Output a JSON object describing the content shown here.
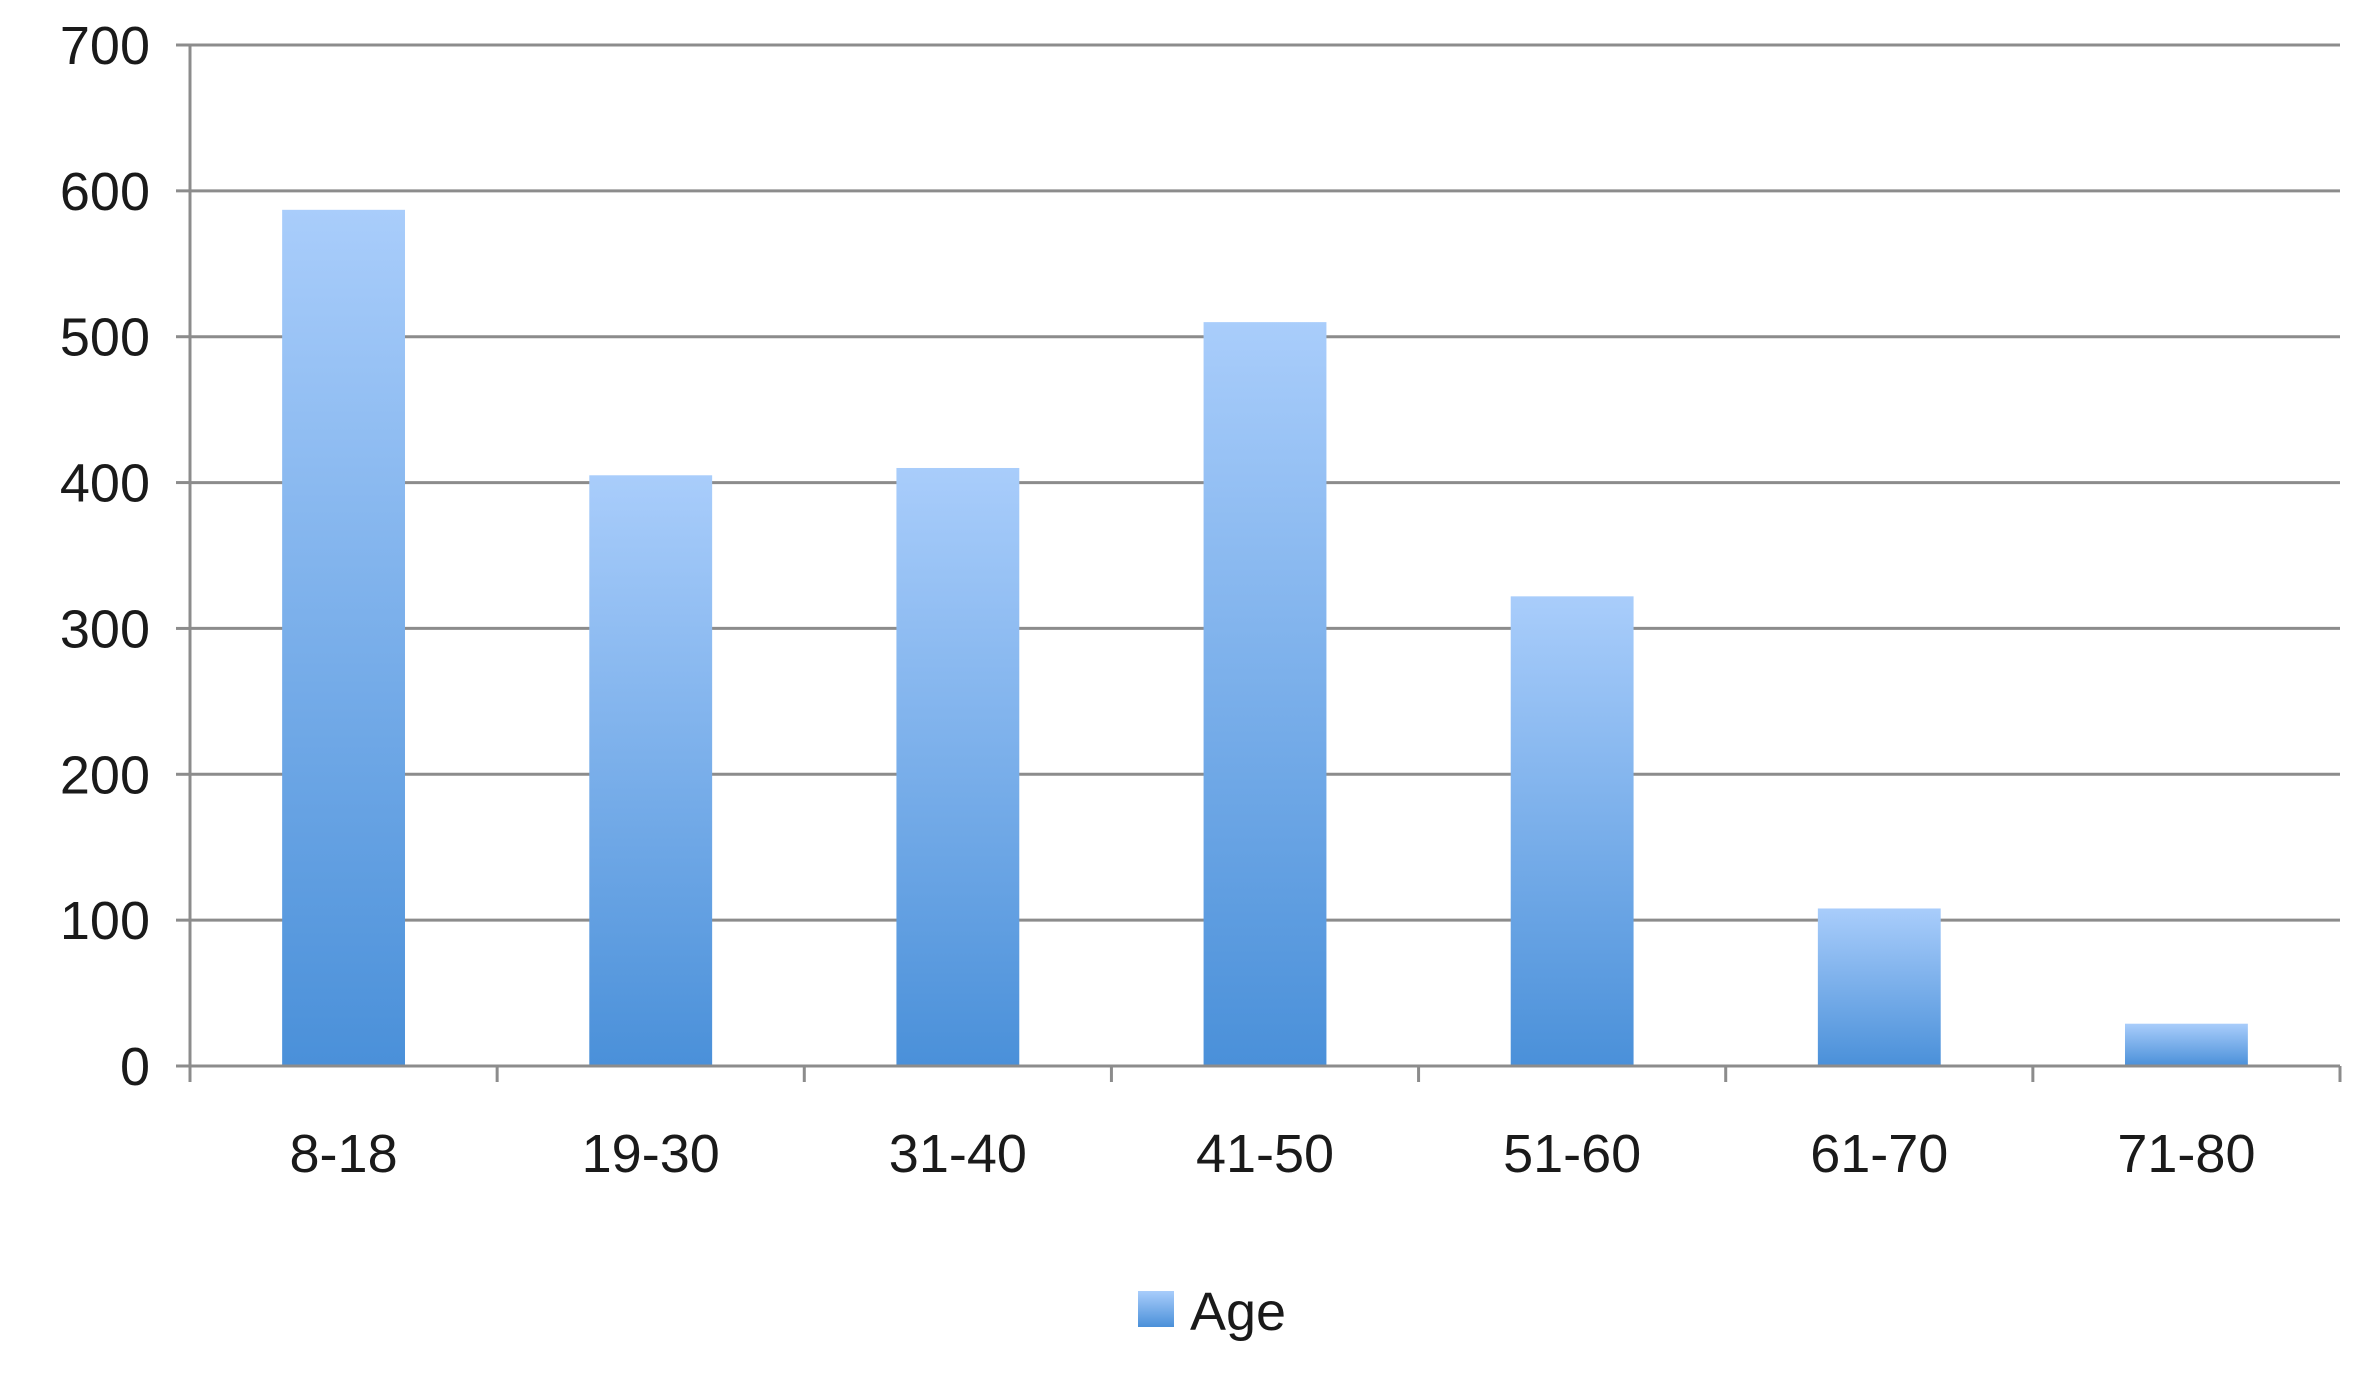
{
  "chart_data": {
    "type": "bar",
    "categories": [
      "8-18",
      "19-30",
      "31-40",
      "41-50",
      "51-60",
      "61-70",
      "71-80"
    ],
    "series": [
      {
        "name": "Age",
        "values": [
          587,
          405,
          410,
          510,
          322,
          108,
          29
        ],
        "color_top": "#a9cdfb",
        "color_bottom": "#4a90d9"
      }
    ],
    "y_ticks": [
      "0",
      "100",
      "200",
      "300",
      "400",
      "500",
      "600",
      "700"
    ],
    "ylim": [
      0,
      700
    ],
    "grid": true,
    "legend": "bottom-center",
    "title": "",
    "xlabel": "",
    "ylabel": ""
  }
}
